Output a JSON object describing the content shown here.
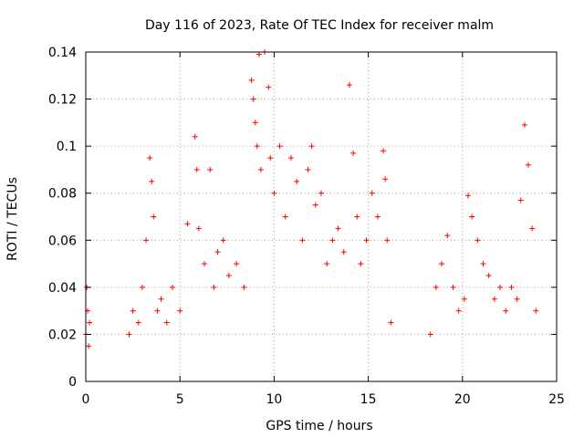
{
  "chart_data": {
    "type": "scatter",
    "title": "Day 116 of 2023, Rate Of TEC Index for receiver malm",
    "xlabel": "GPS time / hours",
    "ylabel": "ROTI / TECUs",
    "xlim": [
      0,
      25
    ],
    "ylim": [
      0,
      0.14
    ],
    "xticks": [
      0,
      5,
      10,
      15,
      20,
      25
    ],
    "xtick_labels": [
      "0",
      "5",
      "10",
      "15",
      "20",
      "25"
    ],
    "yticks": [
      0,
      0.02,
      0.04,
      0.06,
      0.08,
      0.1,
      0.12,
      0.14
    ],
    "ytick_labels": [
      "0",
      "0.02",
      "0.04",
      "0.06",
      "0.08",
      "0.1",
      "0.12",
      "0.14"
    ],
    "grid": true,
    "marker": "+",
    "color": "#ff0000",
    "series": [
      {
        "x": [
          0.0,
          0.05,
          0.1,
          0.15,
          0.2,
          2.3,
          2.5,
          2.8,
          3.0,
          3.2,
          3.4,
          3.5,
          3.6,
          3.8,
          4.0,
          4.3,
          4.6,
          5.0,
          5.4,
          5.8,
          5.9,
          6.0,
          6.3,
          6.6,
          6.8,
          7.0,
          7.3,
          7.6,
          8.0,
          8.4,
          8.8,
          8.9,
          9.0,
          9.1,
          9.2,
          9.3,
          9.5,
          9.7,
          9.8,
          10.0,
          10.3,
          10.6,
          10.9,
          11.2,
          11.5,
          11.8,
          12.0,
          12.2,
          12.5,
          12.8,
          13.1,
          13.4,
          13.7,
          14.0,
          14.2,
          14.4,
          14.6,
          14.9,
          15.2,
          15.5,
          15.8,
          15.9,
          16.0,
          16.2,
          18.3,
          18.6,
          18.9,
          19.2,
          19.5,
          19.8,
          20.1,
          20.3,
          20.5,
          20.8,
          21.1,
          21.4,
          21.7,
          22.0,
          22.3,
          22.6,
          22.9,
          23.1,
          23.3,
          23.5,
          23.7,
          23.9
        ],
        "y": [
          0.02,
          0.04,
          0.03,
          0.015,
          0.025,
          0.02,
          0.03,
          0.025,
          0.04,
          0.06,
          0.095,
          0.085,
          0.07,
          0.03,
          0.035,
          0.025,
          0.04,
          0.03,
          0.067,
          0.104,
          0.09,
          0.065,
          0.05,
          0.09,
          0.04,
          0.055,
          0.06,
          0.045,
          0.05,
          0.04,
          0.128,
          0.12,
          0.11,
          0.1,
          0.139,
          0.09,
          0.14,
          0.125,
          0.095,
          0.08,
          0.1,
          0.07,
          0.095,
          0.085,
          0.06,
          0.09,
          0.1,
          0.075,
          0.08,
          0.05,
          0.06,
          0.065,
          0.055,
          0.126,
          0.097,
          0.07,
          0.05,
          0.06,
          0.08,
          0.07,
          0.098,
          0.086,
          0.06,
          0.025,
          0.02,
          0.04,
          0.05,
          0.062,
          0.04,
          0.03,
          0.035,
          0.079,
          0.07,
          0.06,
          0.05,
          0.045,
          0.035,
          0.04,
          0.03,
          0.04,
          0.035,
          0.077,
          0.109,
          0.092,
          0.065,
          0.03
        ]
      }
    ]
  }
}
